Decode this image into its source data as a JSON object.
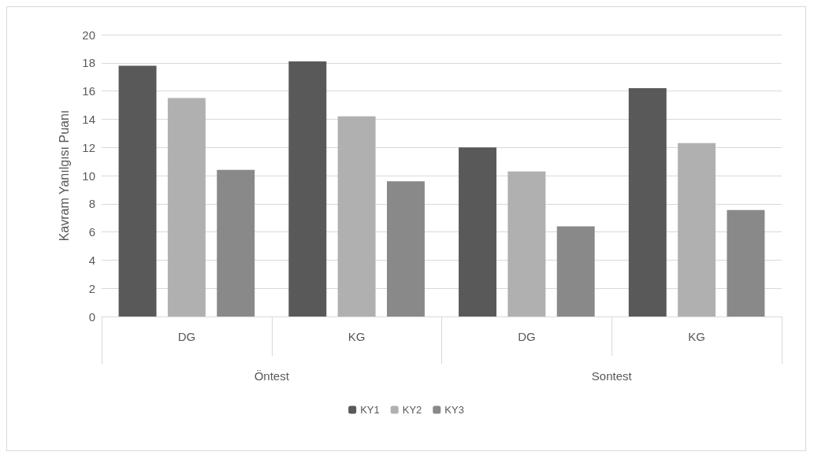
{
  "chart_data": {
    "type": "bar",
    "ylabel": "Kavram Yanılgısı Puanı",
    "categories": [
      "DG",
      "KG",
      "DG",
      "KG"
    ],
    "series": [
      {
        "name": "KY1",
        "color": "#595959",
        "values": [
          17.8,
          18.1,
          12.0,
          16.2
        ]
      },
      {
        "name": "KY2",
        "color": "#b0b0b0",
        "values": [
          15.5,
          14.2,
          10.3,
          12.3
        ]
      },
      {
        "name": "KY3",
        "color": "#898989",
        "values": [
          10.4,
          9.6,
          6.4,
          7.55
        ]
      }
    ],
    "annotations": [
      "Öntest",
      "Sontest"
    ],
    "ylim": [
      0,
      20
    ],
    "yticks": [
      0,
      2,
      4,
      6,
      8,
      10,
      12,
      14,
      16,
      18,
      20
    ],
    "grid": "y",
    "legend": "bottom"
  }
}
